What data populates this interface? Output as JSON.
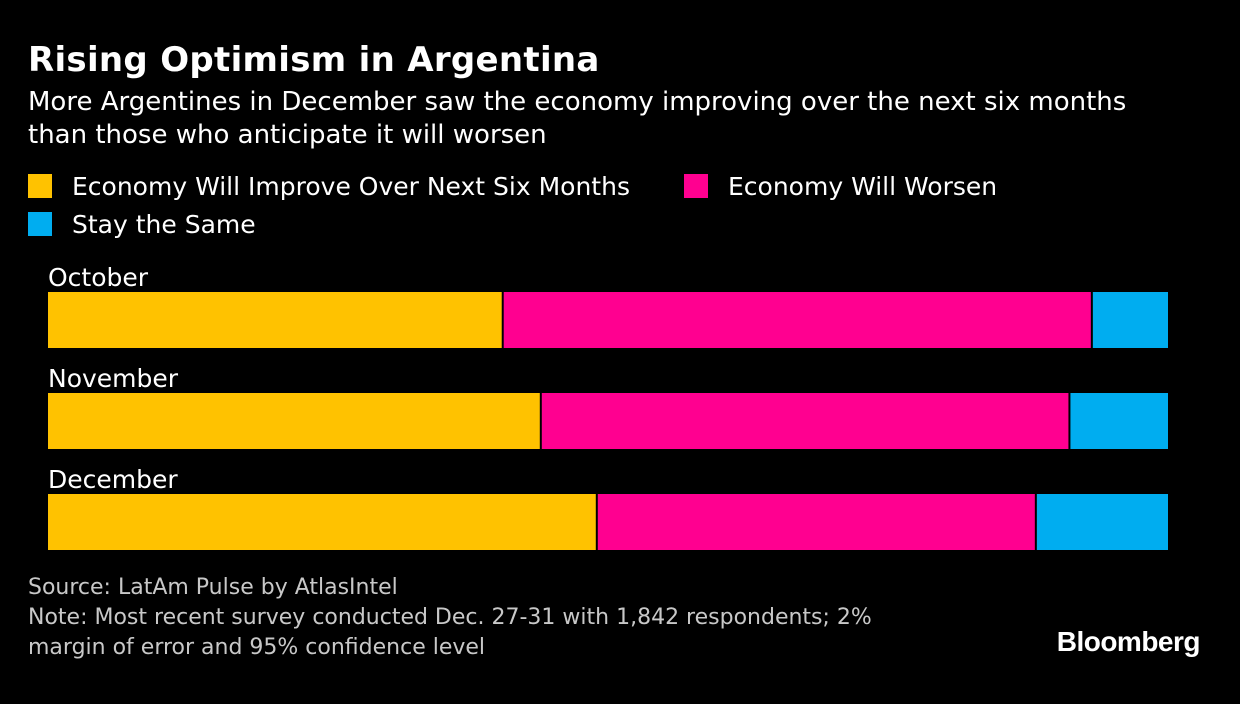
{
  "chart_data": {
    "type": "bar",
    "orientation": "horizontal",
    "stacked": true,
    "title": "Rising Optimism in Argentina",
    "subtitle": "More Argentines in December saw the economy improving over the next six months than those who anticipate it will worsen",
    "categories": [
      "October",
      "November",
      "December"
    ],
    "series": [
      {
        "name": "Economy Will Improve Over Next Six Months",
        "color": "#ffc200",
        "values": [
          40.6,
          44.0,
          49.0
        ]
      },
      {
        "name": "Economy Will Worsen",
        "color": "#ff0090",
        "values": [
          52.6,
          47.2,
          39.2
        ]
      },
      {
        "name": "Stay the Same",
        "color": "#00adf0",
        "values": [
          6.8,
          8.8,
          11.8
        ]
      }
    ],
    "xlim": [
      0,
      100
    ],
    "xlabel": "",
    "ylabel": ""
  },
  "footer": {
    "source": "Source: LatAm Pulse by AtlasIntel",
    "note_line1": "Note: Most recent survey conducted Dec. 27-31 with 1,842 respondents; 2%",
    "note_line2": "margin of error and 95% confidence level",
    "logo": "Bloomberg"
  }
}
